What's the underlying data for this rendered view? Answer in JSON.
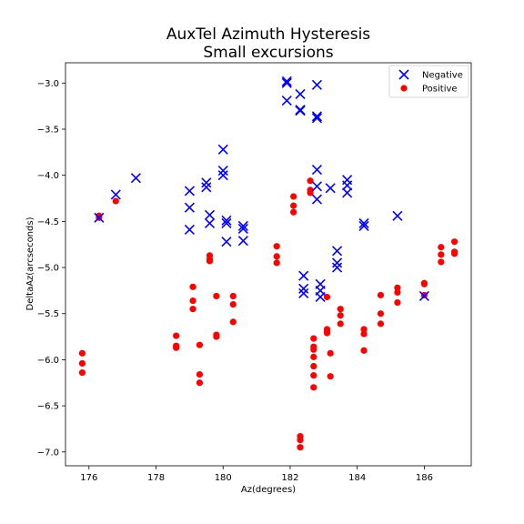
{
  "chart_data": {
    "type": "scatter",
    "title": "AuxTel Azimuth Hysteresis",
    "subtitle": "Small excursions",
    "xlabel": "Az(degrees)",
    "ylabel": "DeltaAz(arcseconds)",
    "xlim": [
      175.3,
      187.4
    ],
    "ylim": [
      -7.15,
      -2.78
    ],
    "xticks": [
      176,
      178,
      180,
      182,
      184,
      186
    ],
    "yticks": [
      -3.0,
      -3.5,
      -4.0,
      -4.5,
      -5.0,
      -5.5,
      -6.0,
      -6.5,
      -7.0
    ],
    "xtick_labels": [
      "176",
      "178",
      "180",
      "182",
      "184",
      "186"
    ],
    "ytick_labels": [
      "−3.0",
      "−3.5",
      "−4.0",
      "−4.5",
      "−5.0",
      "−5.5",
      "−6.0",
      "−6.5",
      "−7.0"
    ],
    "legend_position": "top-right",
    "grid": false,
    "series": [
      {
        "name": "Negative",
        "marker": "x",
        "color": "#0000ff",
        "points": [
          [
            176.3,
            -4.46
          ],
          [
            176.8,
            -4.21
          ],
          [
            177.4,
            -4.03
          ],
          [
            179.0,
            -4.17
          ],
          [
            179.0,
            -4.35
          ],
          [
            179.0,
            -4.59
          ],
          [
            179.5,
            -4.08
          ],
          [
            179.5,
            -4.13
          ],
          [
            179.6,
            -4.43
          ],
          [
            179.6,
            -4.52
          ],
          [
            180.0,
            -3.72
          ],
          [
            180.0,
            -3.95
          ],
          [
            180.0,
            -4.0
          ],
          [
            180.1,
            -4.49
          ],
          [
            180.1,
            -4.52
          ],
          [
            180.1,
            -4.72
          ],
          [
            180.6,
            -4.55
          ],
          [
            180.6,
            -4.58
          ],
          [
            180.6,
            -4.71
          ],
          [
            181.9,
            -2.98
          ],
          [
            181.9,
            -3.0
          ],
          [
            181.9,
            -3.19
          ],
          [
            182.3,
            -3.12
          ],
          [
            182.3,
            -3.29
          ],
          [
            182.3,
            -3.3
          ],
          [
            182.8,
            -3.02
          ],
          [
            182.8,
            -3.36
          ],
          [
            182.8,
            -3.38
          ],
          [
            182.8,
            -3.94
          ],
          [
            182.8,
            -4.12
          ],
          [
            182.8,
            -4.26
          ],
          [
            182.4,
            -5.09
          ],
          [
            182.4,
            -5.23
          ],
          [
            182.4,
            -5.28
          ],
          [
            182.9,
            -5.18
          ],
          [
            182.9,
            -5.25
          ],
          [
            182.9,
            -5.32
          ],
          [
            183.2,
            -4.14
          ],
          [
            183.4,
            -4.82
          ],
          [
            183.4,
            -4.95
          ],
          [
            183.4,
            -5.0
          ],
          [
            183.7,
            -4.05
          ],
          [
            183.7,
            -4.11
          ],
          [
            183.7,
            -4.19
          ],
          [
            184.2,
            -4.52
          ],
          [
            184.2,
            -4.55
          ],
          [
            185.2,
            -4.44
          ],
          [
            186.0,
            -5.31
          ]
        ]
      },
      {
        "name": "Positive",
        "marker": "o",
        "color": "#ff0000",
        "points": [
          [
            175.8,
            -5.93
          ],
          [
            175.8,
            -6.04
          ],
          [
            175.8,
            -6.14
          ],
          [
            176.3,
            -4.44
          ],
          [
            176.3,
            -4.46
          ],
          [
            176.8,
            -4.28
          ],
          [
            178.6,
            -5.74
          ],
          [
            178.6,
            -5.85
          ],
          [
            178.6,
            -5.87
          ],
          [
            179.1,
            -5.21
          ],
          [
            179.1,
            -5.36
          ],
          [
            179.1,
            -5.45
          ],
          [
            179.3,
            -5.84
          ],
          [
            179.3,
            -6.16
          ],
          [
            179.3,
            -6.25
          ],
          [
            179.6,
            -4.87
          ],
          [
            179.6,
            -4.91
          ],
          [
            179.6,
            -4.93
          ],
          [
            179.8,
            -5.31
          ],
          [
            179.8,
            -5.73
          ],
          [
            179.8,
            -5.75
          ],
          [
            180.3,
            -5.31
          ],
          [
            180.3,
            -5.4
          ],
          [
            180.3,
            -5.59
          ],
          [
            181.6,
            -4.77
          ],
          [
            181.6,
            -4.88
          ],
          [
            181.6,
            -4.95
          ],
          [
            182.1,
            -4.23
          ],
          [
            182.1,
            -4.33
          ],
          [
            182.1,
            -4.4
          ],
          [
            182.6,
            -4.06
          ],
          [
            182.6,
            -4.16
          ],
          [
            182.6,
            -4.19
          ],
          [
            182.3,
            -6.83
          ],
          [
            182.3,
            -6.87
          ],
          [
            182.3,
            -6.95
          ],
          [
            182.7,
            -5.77
          ],
          [
            182.7,
            -5.86
          ],
          [
            182.7,
            -5.89
          ],
          [
            182.7,
            -5.97
          ],
          [
            182.7,
            -6.07
          ],
          [
            182.7,
            -6.17
          ],
          [
            182.7,
            -6.3
          ],
          [
            183.1,
            -5.32
          ],
          [
            183.1,
            -5.67
          ],
          [
            183.1,
            -5.7
          ],
          [
            183.1,
            -5.71
          ],
          [
            183.2,
            -5.93
          ],
          [
            183.2,
            -6.18
          ],
          [
            183.5,
            -5.45
          ],
          [
            183.5,
            -5.52
          ],
          [
            183.5,
            -5.61
          ],
          [
            184.2,
            -5.67
          ],
          [
            184.2,
            -5.72
          ],
          [
            184.2,
            -5.9
          ],
          [
            184.7,
            -5.3
          ],
          [
            184.7,
            -5.5
          ],
          [
            184.7,
            -5.61
          ],
          [
            185.2,
            -5.22
          ],
          [
            185.2,
            -5.27
          ],
          [
            185.2,
            -5.38
          ],
          [
            186.0,
            -5.17
          ],
          [
            186.0,
            -5.18
          ],
          [
            186.0,
            -5.3
          ],
          [
            186.5,
            -4.78
          ],
          [
            186.5,
            -4.86
          ],
          [
            186.5,
            -4.94
          ],
          [
            186.9,
            -4.72
          ],
          [
            186.9,
            -4.83
          ],
          [
            186.9,
            -4.85
          ]
        ]
      }
    ]
  }
}
